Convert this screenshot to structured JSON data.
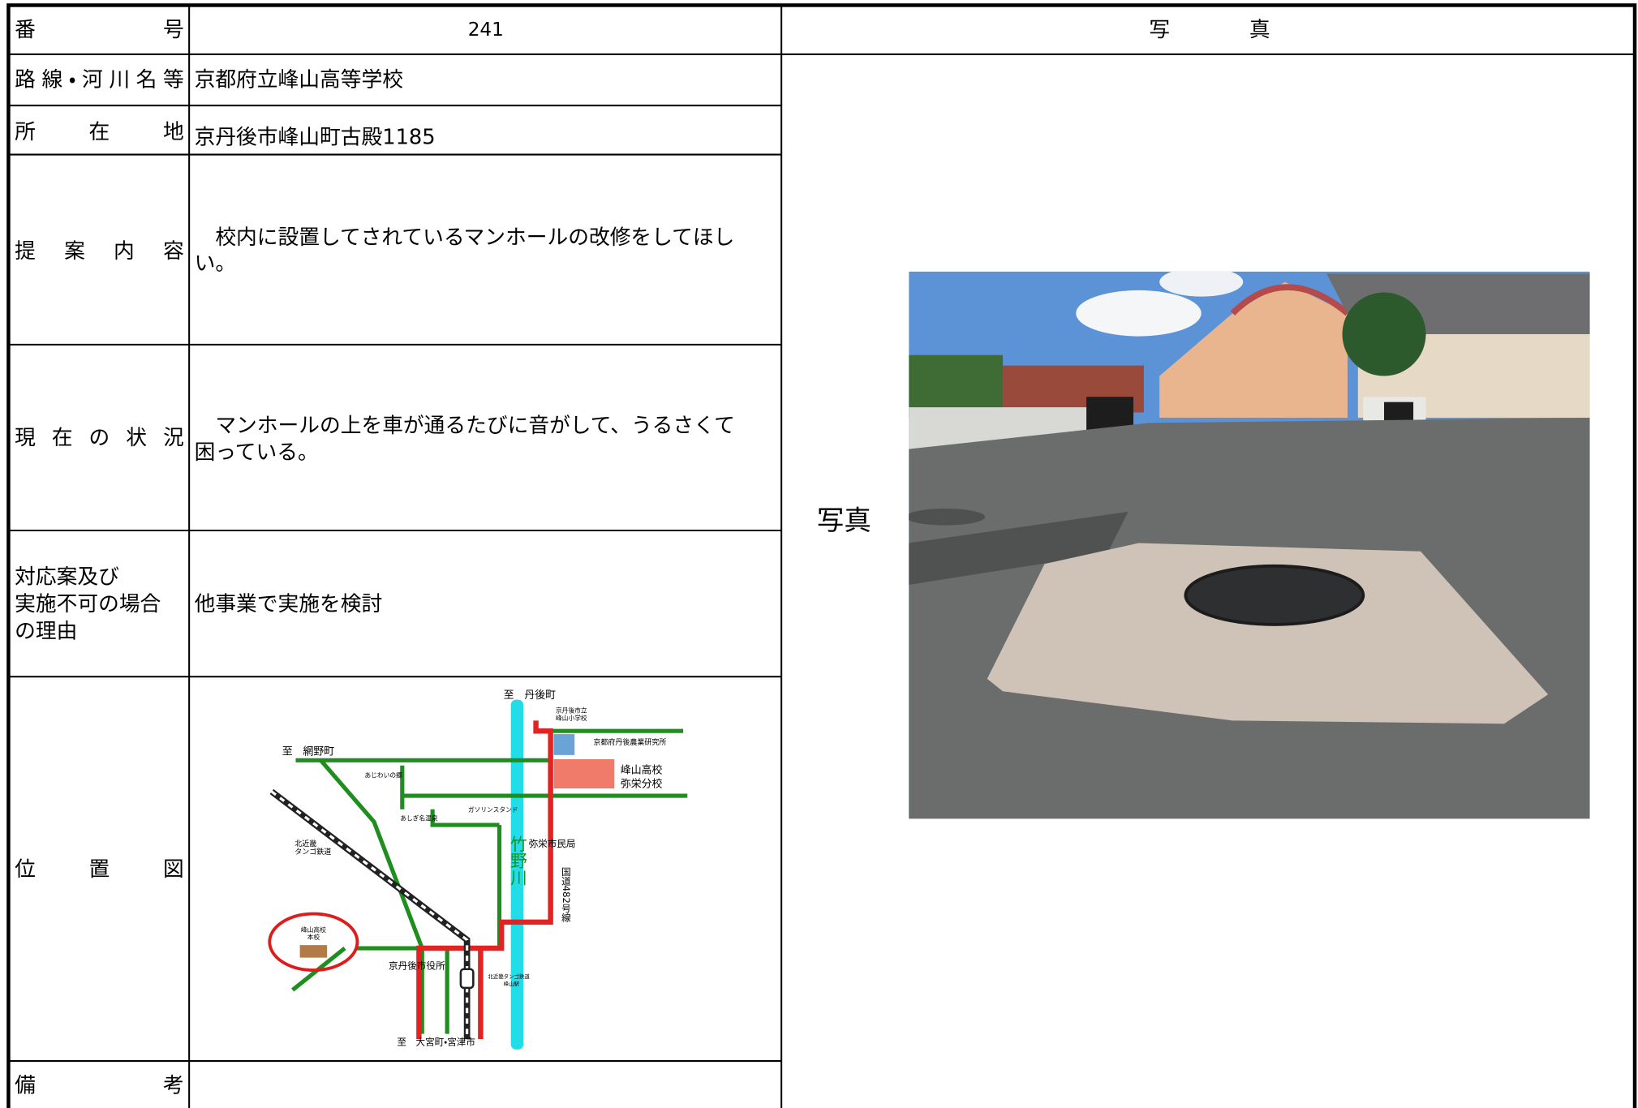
{
  "header": {
    "number_label": "番号",
    "number": "241",
    "photo_label": "写真"
  },
  "route_label": "路線・河川名等",
  "route": "京都府立峰山高等学校",
  "location_label": "所在地",
  "location": "京丹後市峰山町古殿1185",
  "proposal_label": "提案内容",
  "proposal_lines": [
    "　校内に設置してされているマンホールの改修をしてほし",
    "い。"
  ],
  "status_label": "現在の状況",
  "status_lines": [
    "　マンホールの上を車が通るたびに音がして、うるさくて",
    "困っている。"
  ],
  "response_label_lines": [
    "対応案及び",
    "実施不可の場合",
    "の理由"
  ],
  "response": "他事業で実施を検討",
  "map_label": "位置図",
  "remarks_label": "備考",
  "photo_caption": "写真",
  "map": {
    "to_tango": "至　丹後町",
    "elementary_school": [
      "京丹後市立",
      "峰山小学校"
    ],
    "research_center": "京都府丹後農業研究所",
    "branch_school": [
      "峰山高校",
      "弥栄分校"
    ],
    "to_amino": "至　網野町",
    "ajiwai": "あじわいの郷",
    "onsen": "あしぎ名温泉",
    "gas_station": "ガソリンスタンド",
    "yasaka_office": "弥栄市民局",
    "railway": [
      "北近畿",
      "タンゴ鉄道"
    ],
    "river": "竹野川",
    "national_road": "国道482号線",
    "main_school": [
      "峰山高校",
      "本校"
    ],
    "city_hall": "京丹後市役所",
    "station": [
      "北近畿タンゴ鉄道",
      "峰山駅"
    ],
    "to_omiya": "至　大宮町・宮津市"
  }
}
